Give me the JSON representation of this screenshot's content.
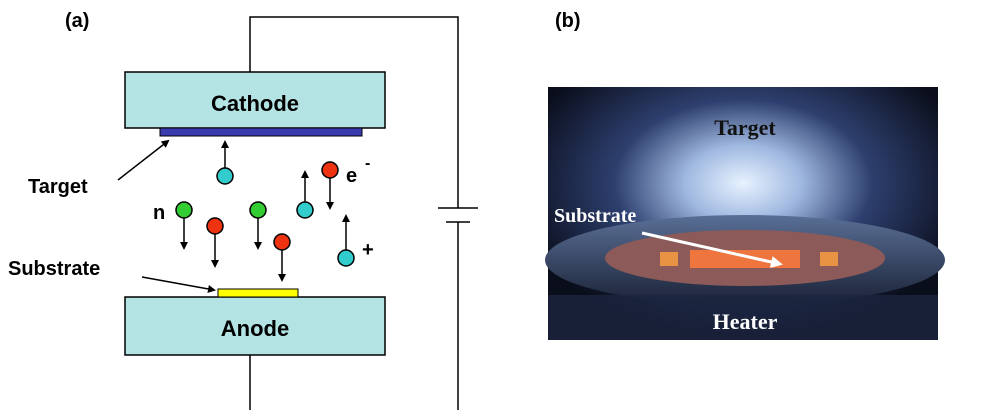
{
  "panel_a": {
    "label": "(a)",
    "cathode": "Cathode",
    "anode": "Anode",
    "target": "Target",
    "substrate": "Substrate",
    "neutral": "n",
    "electron": "e",
    "electron_sign": "-",
    "ion_sign": "+"
  },
  "panel_b": {
    "label": "(b)",
    "target": "Target",
    "substrate": "Substrate",
    "heater": "Heater"
  }
}
